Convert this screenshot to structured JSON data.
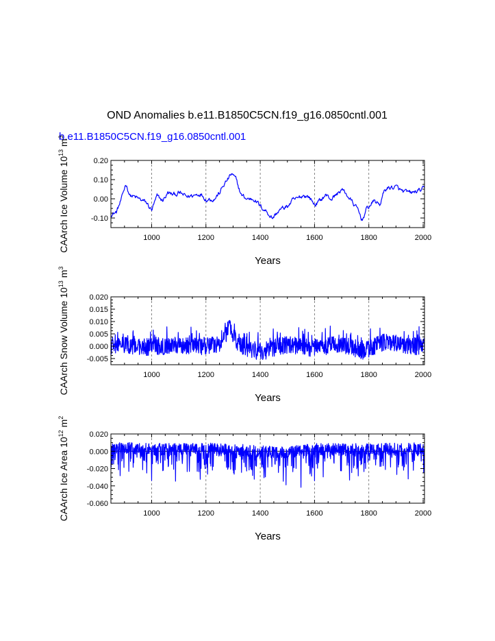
{
  "main_title": "OND Anomalies b.e11.B1850C5CN.f19_g16.0850cntl.001",
  "case_label": "b.e11.B1850C5CN.f19_g16.0850cntl.001",
  "colors": {
    "series": "#0000ff",
    "axis": "#000000",
    "grid": "#666666",
    "zero_line": "#000000"
  },
  "chart_data": [
    {
      "type": "line",
      "ylabel": "CAArch Ice Volume 10",
      "ylabel_exp": "13",
      "ylabel_unit": " m",
      "ylabel_unit_exp": "3",
      "xlabel": "Years",
      "xlim": [
        850,
        2005
      ],
      "ylim": [
        -0.15,
        0.2
      ],
      "xticks": [
        1000,
        1200,
        1400,
        1600,
        1800,
        2000
      ],
      "yticks": [
        -0.1,
        0.0,
        0.1,
        0.2
      ],
      "yticklabels": [
        "-0.10",
        "0.00",
        "0.10",
        "0.20"
      ],
      "gridlines_x": [
        1000,
        1200,
        1400,
        1600,
        1800
      ],
      "zero_line": false,
      "series": [
        {
          "name": "CAArch Ice Volume",
          "anchors": [
            [
              850,
              -0.08
            ],
            [
              870,
              -0.07
            ],
            [
              890,
              0.0
            ],
            [
              905,
              0.08
            ],
            [
              920,
              0.02
            ],
            [
              950,
              0.0
            ],
            [
              980,
              -0.02
            ],
            [
              1000,
              -0.06
            ],
            [
              1020,
              0.01
            ],
            [
              1040,
              -0.01
            ],
            [
              1060,
              0.03
            ],
            [
              1080,
              0.02
            ],
            [
              1100,
              0.03
            ],
            [
              1130,
              0.01
            ],
            [
              1160,
              0.02
            ],
            [
              1180,
              0.03
            ],
            [
              1200,
              0.0
            ],
            [
              1230,
              0.0
            ],
            [
              1250,
              0.03
            ],
            [
              1265,
              0.07
            ],
            [
              1280,
              0.1
            ],
            [
              1295,
              0.13
            ],
            [
              1310,
              0.1
            ],
            [
              1330,
              0.02
            ],
            [
              1350,
              0.0
            ],
            [
              1380,
              0.0
            ],
            [
              1400,
              -0.04
            ],
            [
              1420,
              -0.06
            ],
            [
              1445,
              -0.1
            ],
            [
              1470,
              -0.06
            ],
            [
              1500,
              -0.04
            ],
            [
              1520,
              -0.01
            ],
            [
              1540,
              0.0
            ],
            [
              1560,
              0.02
            ],
            [
              1580,
              0.01
            ],
            [
              1600,
              -0.03
            ],
            [
              1620,
              -0.01
            ],
            [
              1640,
              0.02
            ],
            [
              1660,
              0.0
            ],
            [
              1680,
              0.02
            ],
            [
              1700,
              0.05
            ],
            [
              1720,
              0.02
            ],
            [
              1740,
              -0.02
            ],
            [
              1760,
              -0.06
            ],
            [
              1775,
              -0.11
            ],
            [
              1790,
              -0.06
            ],
            [
              1800,
              -0.04
            ],
            [
              1820,
              -0.01
            ],
            [
              1840,
              -0.03
            ],
            [
              1860,
              0.05
            ],
            [
              1880,
              0.06
            ],
            [
              1900,
              0.06
            ],
            [
              1920,
              0.04
            ],
            [
              1940,
              0.03
            ],
            [
              1960,
              0.03
            ],
            [
              1980,
              0.04
            ],
            [
              2005,
              0.05
            ]
          ],
          "noise_amplitude": 0.012,
          "smooth": true,
          "step_years": 2
        }
      ]
    },
    {
      "type": "line",
      "ylabel": "CAArch Snow Volume 10",
      "ylabel_exp": "13",
      "ylabel_unit": " m",
      "ylabel_unit_exp": "3",
      "xlabel": "Years",
      "xlim": [
        850,
        2005
      ],
      "ylim": [
        -0.0075,
        0.02
      ],
      "xticks": [
        1000,
        1200,
        1400,
        1600,
        1800,
        2000
      ],
      "yticks": [
        -0.005,
        0.0,
        0.005,
        0.01,
        0.015,
        0.02
      ],
      "yticklabels": [
        "-0.005",
        "0.000",
        "0.005",
        "0.010",
        "0.015",
        "0.020"
      ],
      "gridlines_x": [
        1000,
        1200,
        1400,
        1600,
        1800
      ],
      "zero_line": false,
      "series": [
        {
          "name": "CAArch Snow Volume",
          "anchors": [
            [
              850,
              0.0
            ],
            [
              900,
              0.0005
            ],
            [
              950,
              0.0
            ],
            [
              1000,
              -0.0005
            ],
            [
              1050,
              0.0
            ],
            [
              1100,
              0.0005
            ],
            [
              1150,
              0.0
            ],
            [
              1200,
              0.0
            ],
            [
              1250,
              0.001
            ],
            [
              1270,
              0.004
            ],
            [
              1285,
              0.008
            ],
            [
              1300,
              0.004
            ],
            [
              1330,
              0.0
            ],
            [
              1380,
              -0.002
            ],
            [
              1420,
              -0.002
            ],
            [
              1470,
              0.0
            ],
            [
              1500,
              0.0005
            ],
            [
              1550,
              0.0
            ],
            [
              1600,
              -0.001
            ],
            [
              1650,
              0.0
            ],
            [
              1700,
              0.001
            ],
            [
              1750,
              -0.001
            ],
            [
              1780,
              -0.002
            ],
            [
              1820,
              0.0
            ],
            [
              1860,
              0.002
            ],
            [
              1900,
              0.001
            ],
            [
              1950,
              0.0
            ],
            [
              2005,
              0.0
            ]
          ],
          "noise_amplitude": 0.0035,
          "smooth": false,
          "step_years": 1,
          "clip": [
            -0.006,
            0.0165
          ]
        }
      ]
    },
    {
      "type": "line",
      "ylabel": "CAArch Ice Area 10",
      "ylabel_exp": "12",
      "ylabel_unit": " m",
      "ylabel_unit_exp": "2",
      "xlabel": "Years",
      "xlim": [
        850,
        2005
      ],
      "ylim": [
        -0.06,
        0.02
      ],
      "xticks": [
        1000,
        1200,
        1400,
        1600,
        1800,
        2000
      ],
      "yticks": [
        -0.06,
        -0.04,
        -0.02,
        0.0,
        0.02
      ],
      "yticklabels": [
        "-0.060",
        "-0.040",
        "-0.020",
        "0.000",
        "0.020"
      ],
      "gridlines_x": [
        1000,
        1200,
        1400,
        1600,
        1800
      ],
      "zero_line": true,
      "series": [
        {
          "name": "CAArch Ice Area",
          "anchors": [
            [
              850,
              0.004
            ],
            [
              1000,
              0.002
            ],
            [
              1200,
              0.003
            ],
            [
              1400,
              0.0
            ],
            [
              1470,
              -0.002
            ],
            [
              1600,
              0.002
            ],
            [
              1800,
              0.002
            ],
            [
              2005,
              0.003
            ]
          ],
          "noise_amplitude": 0.01,
          "negative_spikes": true,
          "smooth": false,
          "step_years": 1,
          "clip": [
            -0.052,
            0.0165
          ]
        }
      ]
    }
  ]
}
